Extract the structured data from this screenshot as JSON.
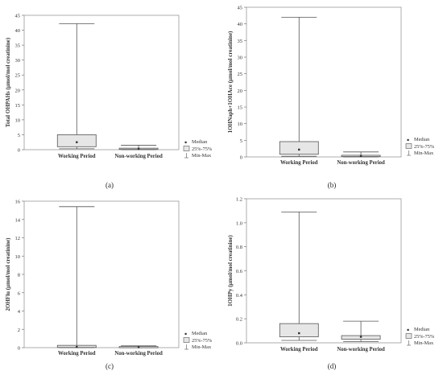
{
  "chart_data": [
    {
      "type": "box",
      "panel_label": "(a)",
      "ylabel": "Total OHPAHs (μmol/mol creatinine)",
      "ylim": [
        0,
        45
      ],
      "yticks": [
        0,
        5,
        10,
        15,
        20,
        25,
        30,
        35,
        40,
        45
      ],
      "categories": [
        "Working Period",
        "Non-working Period"
      ],
      "boxes": [
        {
          "min": 0.3,
          "q1": 1.0,
          "median": 2.5,
          "q3": 5.0,
          "max": 42.2
        },
        {
          "min": 0.0,
          "q1": 0.1,
          "median": 0.3,
          "q3": 0.5,
          "max": 1.5
        }
      ],
      "legend": [
        "Median",
        "25%-75%",
        "Min-Max"
      ]
    },
    {
      "type": "box",
      "panel_label": "(b)",
      "ylabel": "1OHNaph+1OHAce (μmol/mol creatinine)",
      "ylim": [
        0,
        45
      ],
      "yticks": [
        0,
        5,
        10,
        15,
        20,
        25,
        30,
        35,
        40,
        45
      ],
      "categories": [
        "Working Period",
        "Non-working Period"
      ],
      "boxes": [
        {
          "min": 0.2,
          "q1": 0.8,
          "median": 2.2,
          "q3": 4.6,
          "max": 42.0
        },
        {
          "min": 0.0,
          "q1": 0.1,
          "median": 0.3,
          "q3": 0.5,
          "max": 1.5
        }
      ],
      "legend": [
        "Median",
        "25%-75%",
        "Min-Max"
      ]
    },
    {
      "type": "box",
      "panel_label": "(c)",
      "ylabel": "2OHFlu (μmol/mol creatinine)",
      "ylim": [
        0,
        16
      ],
      "yticks": [
        0,
        2,
        4,
        6,
        8,
        10,
        12,
        14,
        16
      ],
      "categories": [
        "Working Period",
        "Non-working Period"
      ],
      "boxes": [
        {
          "min": 0.0,
          "q1": 0.02,
          "median": 0.08,
          "q3": 0.25,
          "max": 15.4
        },
        {
          "min": 0.0,
          "q1": 0.01,
          "median": 0.05,
          "q3": 0.12,
          "max": 0.2
        }
      ],
      "legend": [
        "Median",
        "25%-75%",
        "Min-Max"
      ]
    },
    {
      "type": "box",
      "panel_label": "(d)",
      "ylabel": "1OHPy (μmol/mol creatinine)",
      "ylim": [
        0,
        1.2
      ],
      "yticks": [
        "0.0",
        "0.2",
        "0.4",
        "0.6",
        "0.8",
        "1.0",
        "1.2"
      ],
      "categories": [
        "Working Period",
        "Non-working Period"
      ],
      "boxes": [
        {
          "min": 0.02,
          "q1": 0.05,
          "median": 0.08,
          "q3": 0.16,
          "max": 1.09
        },
        {
          "min": 0.01,
          "q1": 0.03,
          "median": 0.05,
          "q3": 0.06,
          "max": 0.18
        }
      ],
      "legend": [
        "Median",
        "25%-75%",
        "Min-Max"
      ]
    }
  ]
}
